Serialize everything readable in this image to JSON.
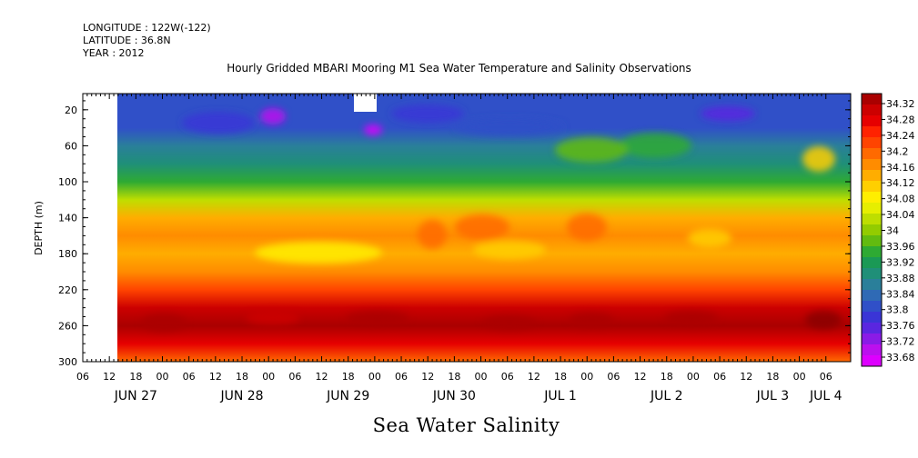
{
  "meta": {
    "longitude": "LONGITUDE : 122W(-122)",
    "latitude": "LATITUDE : 36.8N",
    "year": "YEAR : 2012"
  },
  "chart_data": {
    "type": "heatmap",
    "title": "Hourly Gridded MBARI Mooring M1 Sea Water Temperature and Salinity Observations",
    "xlabel": "Sea Water Salinity",
    "ylabel": "DEPTH (m)",
    "x_hour_ticks": [
      "06",
      "12",
      "18",
      "00",
      "06",
      "12",
      "18",
      "00",
      "06",
      "12",
      "18",
      "00",
      "06",
      "12",
      "18",
      "00",
      "06",
      "12",
      "18",
      "00",
      "06",
      "12",
      "18",
      "00",
      "06",
      "12",
      "18",
      "00",
      "06"
    ],
    "x_day_labels": [
      {
        "label": "JUN 27",
        "hour_index": 2
      },
      {
        "label": "JUN 28",
        "hour_index": 6
      },
      {
        "label": "JUN 29",
        "hour_index": 10
      },
      {
        "label": "JUN 30",
        "hour_index": 14
      },
      {
        "label": "JUL  1",
        "hour_index": 18
      },
      {
        "label": "JUL  2",
        "hour_index": 22
      },
      {
        "label": "JUL  3",
        "hour_index": 26
      },
      {
        "label": "JUL  4",
        "hour_index": 28
      }
    ],
    "y_ticks": [
      20,
      60,
      100,
      140,
      180,
      220,
      260,
      300
    ],
    "ylim": [
      300,
      2
    ],
    "colorbar": {
      "labels": [
        "34.32",
        "34.28",
        "34.24",
        "34.2",
        "34.16",
        "34.12",
        "34.08",
        "34.04",
        "34",
        "33.96",
        "33.92",
        "33.88",
        "33.84",
        "33.8",
        "33.76",
        "33.72",
        "33.68"
      ],
      "colors": [
        "#aa0000",
        "#cc0000",
        "#e60000",
        "#ff2200",
        "#ff4400",
        "#ff6a00",
        "#ff8c00",
        "#ffad00",
        "#ffcf00",
        "#ffee00",
        "#e6ee00",
        "#bede00",
        "#93cc00",
        "#62bb10",
        "#2eaa33",
        "#1a9955",
        "#1f8f78",
        "#2a7f9a",
        "#2f6ab5",
        "#3050c8",
        "#3a35d6",
        "#5a26e0",
        "#8a1be6",
        "#bb10ee",
        "#dd00ff"
      ],
      "low_color": "#e400ff",
      "high_color": "#8a0000"
    },
    "depth_profile": [
      {
        "depth": 5,
        "value": 33.82
      },
      {
        "depth": 20,
        "value": 33.81
      },
      {
        "depth": 40,
        "value": 33.83
      },
      {
        "depth": 60,
        "value": 33.86
      },
      {
        "depth": 80,
        "value": 33.9
      },
      {
        "depth": 100,
        "value": 33.96
      },
      {
        "depth": 120,
        "value": 34.03
      },
      {
        "depth": 140,
        "value": 34.12
      },
      {
        "depth": 160,
        "value": 34.16
      },
      {
        "depth": 180,
        "value": 34.14
      },
      {
        "depth": 200,
        "value": 34.15
      },
      {
        "depth": 220,
        "value": 34.21
      },
      {
        "depth": 240,
        "value": 34.27
      },
      {
        "depth": 260,
        "value": 34.31
      },
      {
        "depth": 280,
        "value": 34.26
      },
      {
        "depth": 300,
        "value": 34.18
      }
    ]
  }
}
